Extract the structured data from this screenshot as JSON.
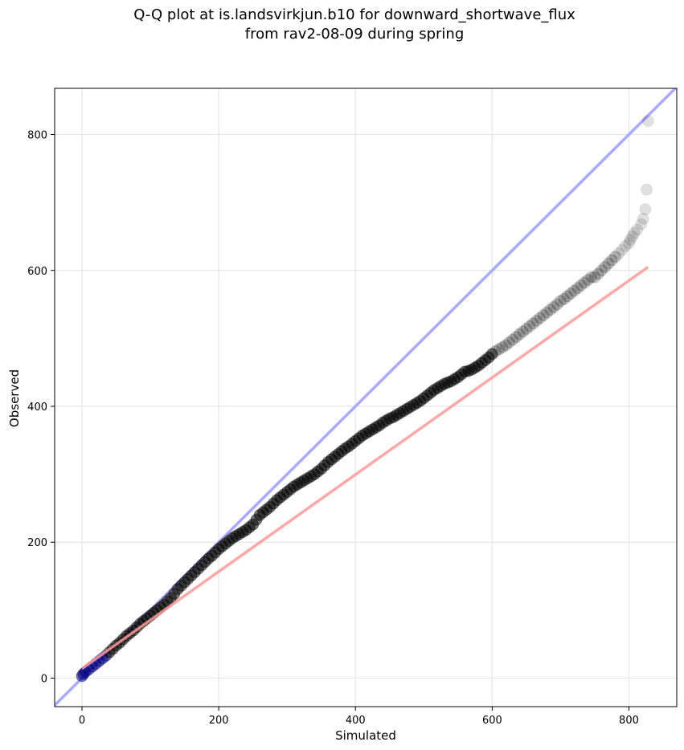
{
  "chart_data": {
    "type": "scatter",
    "title_lines": [
      "Q-Q plot at is.landsvirkjun.b10 for downward_shortwave_flux",
      "from rav2-08-09 during spring"
    ],
    "xlabel": "Simulated",
    "ylabel": "Observed",
    "xlim": [
      -40,
      870
    ],
    "ylim": [
      -42,
      868
    ],
    "xticks": [
      0,
      200,
      400,
      600,
      800
    ],
    "yticks": [
      0,
      200,
      400,
      600,
      800
    ],
    "grid": true,
    "colors": {
      "points": "#000000",
      "one_to_one_line": "#aaaaff",
      "fit_line": "#ff9999",
      "low_points": "#000080"
    },
    "reference_line": {
      "name": "1:1",
      "from": [
        -40,
        -40
      ],
      "to": [
        870,
        870
      ]
    },
    "fit_line": {
      "from": [
        0,
        14
      ],
      "to": [
        828,
        605
      ]
    },
    "series": [
      {
        "x": [
          0,
          2,
          5,
          10,
          15,
          20,
          25,
          30,
          35,
          40,
          45,
          50,
          55,
          60,
          65,
          70,
          75,
          80,
          85,
          90,
          95,
          100,
          105,
          110,
          115,
          120,
          125,
          130,
          135,
          140,
          145,
          150,
          155,
          160,
          165,
          170,
          175,
          180,
          185,
          190,
          195,
          200,
          205,
          210,
          215,
          220,
          225,
          230,
          235,
          240,
          245,
          250,
          255,
          260,
          265,
          270,
          275,
          280,
          285,
          290,
          295,
          300,
          305,
          310,
          315,
          320,
          325,
          330,
          335,
          340,
          345,
          350,
          355,
          360,
          365,
          370,
          375,
          380,
          385,
          390,
          395,
          400,
          405,
          410,
          415,
          420,
          425,
          430,
          435,
          440,
          445,
          450,
          455,
          460,
          465,
          470,
          475,
          480,
          485,
          490,
          495,
          500,
          505,
          510,
          515,
          520,
          525,
          530,
          535,
          540,
          545,
          550,
          555,
          560,
          565,
          570,
          575,
          580,
          585,
          590,
          595,
          600,
          605,
          610,
          615,
          620,
          625,
          630,
          635,
          640,
          645,
          650,
          655,
          660,
          665,
          670,
          675,
          680,
          685,
          690,
          695,
          700,
          705,
          710,
          715,
          720,
          725,
          730,
          735,
          740,
          745,
          750,
          755,
          760,
          765,
          770,
          775,
          780,
          785,
          790,
          795,
          800,
          802,
          805,
          808,
          812,
          818,
          821,
          824,
          826,
          828
        ],
        "y": [
          3,
          6,
          9,
          13,
          17,
          21,
          25,
          29,
          33,
          38,
          43,
          48,
          52,
          57,
          62,
          66,
          70,
          75,
          80,
          84,
          88,
          92,
          96,
          100,
          104,
          108,
          113,
          118,
          124,
          131,
          136,
          141,
          146,
          151,
          156,
          161,
          166,
          171,
          176,
          180,
          185,
          190,
          194,
          198,
          202,
          206,
          209,
          212,
          215,
          218,
          222,
          226,
          233,
          240,
          244,
          248,
          252,
          257,
          262,
          266,
          270,
          274,
          278,
          282,
          285,
          288,
          291,
          294,
          297,
          300,
          304,
          308,
          313,
          318,
          322,
          326,
          330,
          334,
          338,
          341,
          345,
          349,
          353,
          357,
          360,
          363,
          366,
          369,
          372,
          376,
          379,
          382,
          384,
          387,
          390,
          393,
          396,
          399,
          402,
          405,
          408,
          412,
          416,
          420,
          424,
          427,
          430,
          433,
          435,
          437,
          440,
          443,
          447,
          451,
          452,
          454,
          457,
          460,
          464,
          468,
          472,
          477,
          481,
          484,
          487,
          490,
          494,
          498,
          502,
          506,
          510,
          514,
          518,
          522,
          526,
          530,
          534,
          538,
          542,
          546,
          550,
          555,
          558,
          562,
          566,
          570,
          574,
          578,
          582,
          586,
          590,
          590,
          595,
          600,
          605,
          610,
          615,
          620,
          625,
          630,
          636,
          640,
          645,
          650,
          655,
          660,
          668,
          676,
          690,
          719,
          820
        ]
      }
    ]
  }
}
